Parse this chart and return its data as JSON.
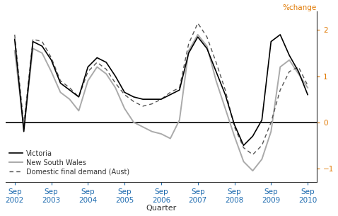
{
  "title": "%change",
  "xlabel": "Quarter",
  "ylim": [
    -1.3,
    2.4
  ],
  "yticks": [
    -1,
    0,
    1,
    2
  ],
  "ytick_labels": [
    "−1",
    "0",
    "1",
    "2"
  ],
  "quarters": [
    "Sep\n2002",
    "Sep\n2003",
    "Sep\n2004",
    "Sep\n2005",
    "Sep\n2006",
    "Sep\n2007",
    "Sep\n2008",
    "Sep\n2009",
    "Sep\n2010"
  ],
  "quarter_positions": [
    0,
    4,
    8,
    12,
    16,
    20,
    24,
    28,
    32
  ],
  "victoria_x": [
    0,
    1,
    2,
    3,
    4,
    5,
    6,
    7,
    8,
    9,
    10,
    11,
    12,
    13,
    14,
    15,
    16,
    17,
    18,
    19,
    20,
    21,
    22,
    23,
    24,
    25,
    26,
    27,
    28,
    29,
    30,
    31,
    32
  ],
  "victoria_y": [
    1.8,
    -0.2,
    1.75,
    1.65,
    1.35,
    0.85,
    0.7,
    0.55,
    1.2,
    1.4,
    1.3,
    1.0,
    0.65,
    0.55,
    0.5,
    0.5,
    0.5,
    0.6,
    0.7,
    1.5,
    1.85,
    1.6,
    1.1,
    0.6,
    -0.05,
    -0.5,
    -0.3,
    0.05,
    1.75,
    1.9,
    1.45,
    1.1,
    0.6
  ],
  "nsw_x": [
    0,
    1,
    2,
    3,
    4,
    5,
    6,
    7,
    8,
    9,
    10,
    11,
    12,
    13,
    14,
    15,
    16,
    17,
    18,
    19,
    20,
    21,
    22,
    23,
    24,
    25,
    26,
    27,
    28,
    29,
    30,
    31,
    32
  ],
  "nsw_y": [
    1.55,
    -0.1,
    1.6,
    1.5,
    1.1,
    0.65,
    0.5,
    0.25,
    0.9,
    1.2,
    1.05,
    0.75,
    0.3,
    0.0,
    -0.1,
    -0.2,
    -0.25,
    -0.35,
    0.05,
    1.55,
    1.9,
    1.65,
    0.9,
    0.3,
    -0.3,
    -0.85,
    -1.05,
    -0.8,
    -0.2,
    1.2,
    1.35,
    1.05,
    0.75
  ],
  "dfd_x": [
    0,
    1,
    2,
    3,
    4,
    5,
    6,
    7,
    8,
    9,
    10,
    11,
    12,
    13,
    14,
    15,
    16,
    17,
    18,
    19,
    20,
    21,
    22,
    23,
    24,
    25,
    26,
    27,
    28,
    29,
    30,
    31,
    32
  ],
  "dfd_y": [
    1.9,
    -0.05,
    1.8,
    1.75,
    1.4,
    0.9,
    0.75,
    0.55,
    1.1,
    1.3,
    1.15,
    0.85,
    0.6,
    0.45,
    0.35,
    0.4,
    0.5,
    0.65,
    0.75,
    1.7,
    2.15,
    1.85,
    1.3,
    0.7,
    -0.1,
    -0.55,
    -0.7,
    -0.5,
    0.0,
    0.7,
    1.1,
    1.2,
    0.8
  ],
  "victoria_color": "#000000",
  "nsw_color": "#aaaaaa",
  "dfd_color": "#555555",
  "bg_color": "#ffffff",
  "axis_color": "#333333",
  "tick_color_x": "#1f6cb0",
  "tick_color_y": "#e07800",
  "zero_line_color": "#000000",
  "legend_vic": "Victoria",
  "legend_nsw": "New South Wales",
  "legend_dfd": "Domestic final demand (Aust)",
  "xlim": [
    -1,
    33
  ]
}
